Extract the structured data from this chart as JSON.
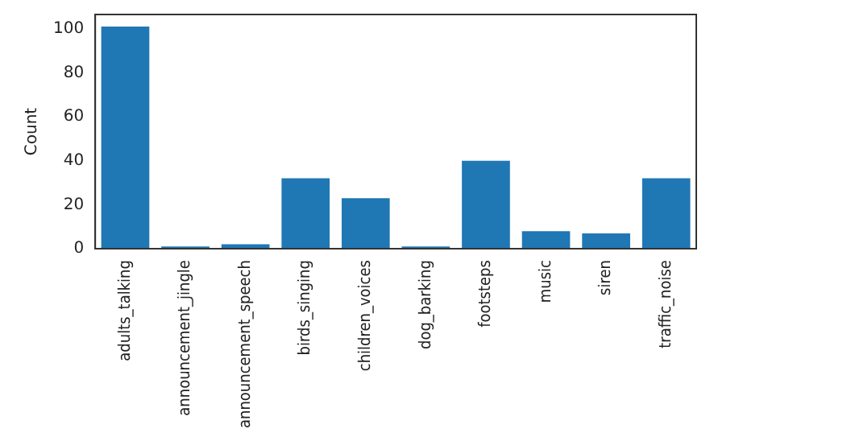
{
  "chart_data": {
    "type": "bar",
    "ylabel": "Count",
    "categories": [
      "adults_talking",
      "announcement_jingle",
      "announcement_speech",
      "birds_singing",
      "children_voices",
      "dog_barking",
      "footsteps",
      "music",
      "siren",
      "traffic_noise"
    ],
    "values": [
      101,
      1,
      2,
      32,
      23,
      1,
      40,
      8,
      7,
      32
    ],
    "color": "#1f77b4",
    "ylim": [
      0,
      106.5
    ],
    "yticks": [
      0,
      20,
      40,
      60,
      80,
      100
    ],
    "grid": false,
    "legend": false
  }
}
